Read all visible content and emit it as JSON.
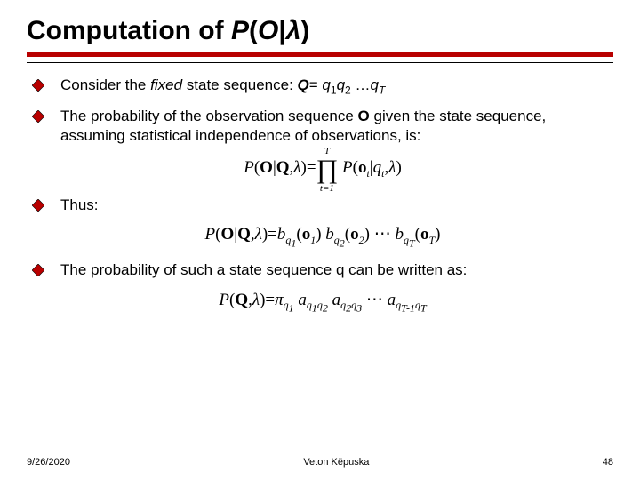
{
  "title": {
    "prefix": "Computation of ",
    "formula_html": "P(O|λ)"
  },
  "colors": {
    "accent_bar": "#b80000",
    "bullet_fill": "#b80000",
    "bullet_border": "#000000",
    "text": "#000000",
    "background": "#ffffff"
  },
  "typography": {
    "title_fontsize": 30,
    "body_fontsize": 17,
    "footer_fontsize": 11,
    "title_weight": "bold"
  },
  "bullets": [
    {
      "text_html": "Consider the <span class='ital'>fixed</span> state sequence: <span class='bold ital'>Q</span>= <span class='ital'>q</span><span class='sub'>1</span><span class='ital'>q</span><span class='sub'>2</span> …<span class='ital'>q</span><span class='sub ital'>T</span>"
    },
    {
      "text_html": "The probability of the observation sequence <span class='bold'>O</span> given the state sequence, assuming statistical independence of observations, is:",
      "formula": "P(\\mathbf{O}|\\mathbf{Q},\\lambda)=\\prod_{t=1}^{T} P(\\mathbf{o}_t|q_t,\\lambda)"
    },
    {
      "text_html": "Thus:",
      "formula": "P(\\mathbf{O}|\\mathbf{Q},\\lambda)=b_{q_1}(\\mathbf{o}_1)\\, b_{q_2}(\\mathbf{o}_2)\\, \\cdots\\, b_{q_T}(\\mathbf{o}_T)"
    },
    {
      "text_html": "The probability of such a state sequence q can be written as:",
      "formula": "P(\\mathbf{Q},\\lambda)=\\pi_{q_1} a_{q_1 q_2} a_{q_2 q_3}\\,\\cdots\\, a_{q_{T-1} q_T}"
    }
  ],
  "footer": {
    "date": "9/26/2020",
    "author": "Veton Këpuska",
    "page": "48"
  }
}
